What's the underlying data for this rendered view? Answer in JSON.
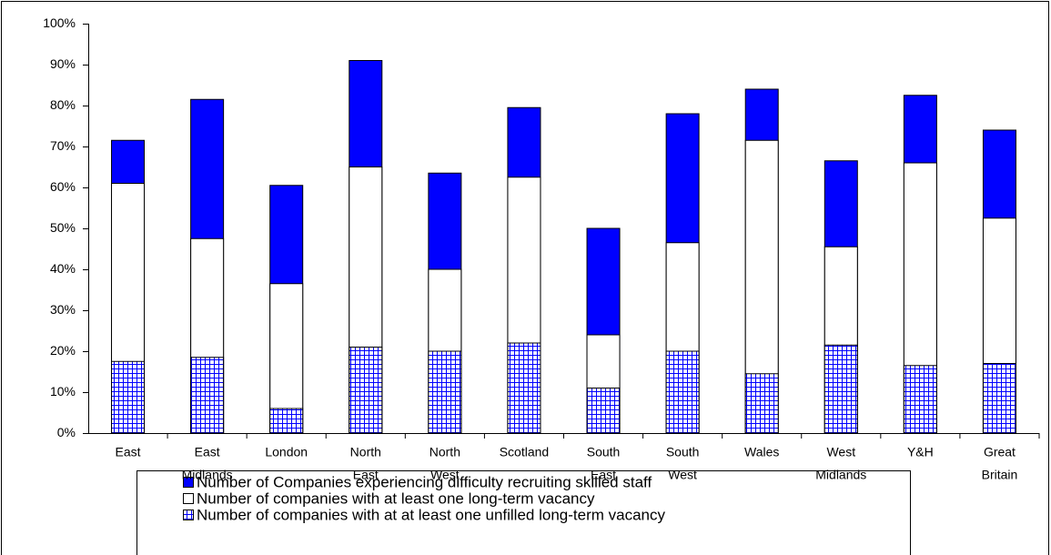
{
  "chart_data": {
    "type": "bar",
    "barmode": "overlay",
    "categories": [
      [
        "East"
      ],
      [
        "East",
        "Midlands"
      ],
      [
        "London"
      ],
      [
        "North",
        "East"
      ],
      [
        "North",
        "West"
      ],
      [
        "Scotland"
      ],
      [
        "South",
        "East"
      ],
      [
        "South",
        "West"
      ],
      [
        "Wales"
      ],
      [
        "West",
        "Midlands"
      ],
      [
        "Y&H"
      ],
      [
        "Great",
        "Britain"
      ]
    ],
    "series": [
      {
        "name": "Number of Companies experiencing difficulty recruiting skilled staff",
        "color": "#0000ff",
        "pattern": "solid",
        "values": [
          71.5,
          81.5,
          60.5,
          91,
          63.5,
          79.5,
          50,
          78,
          84,
          66.5,
          82.5,
          74
        ]
      },
      {
        "name": "Number of companies with at least one long-term vacancy",
        "color": "#ffffff",
        "pattern": "solid",
        "values": [
          61,
          47.5,
          36.5,
          65,
          40,
          62.5,
          24,
          46.5,
          71.5,
          45.5,
          66,
          52.5
        ]
      },
      {
        "name": "Number of companies with at at least one unfilled long-term vacancy",
        "color": "#0000ff",
        "pattern": "grid",
        "values": [
          17.5,
          18.5,
          6,
          21,
          20,
          22,
          11,
          20,
          14.5,
          21.5,
          16.5,
          17
        ]
      }
    ],
    "ylim": [
      0,
      100
    ],
    "yticks": [
      {
        "value": 0,
        "label": "0%"
      },
      {
        "value": 10,
        "label": "10%"
      },
      {
        "value": 20,
        "label": "20%"
      },
      {
        "value": 30,
        "label": "30%"
      },
      {
        "value": 40,
        "label": "40%"
      },
      {
        "value": 50,
        "label": "50%"
      },
      {
        "value": 60,
        "label": "60%"
      },
      {
        "value": 70,
        "label": "70%"
      },
      {
        "value": 80,
        "label": "80%"
      },
      {
        "value": 90,
        "label": "90%"
      },
      {
        "value": 100,
        "label": "100%"
      }
    ],
    "grid": false
  }
}
